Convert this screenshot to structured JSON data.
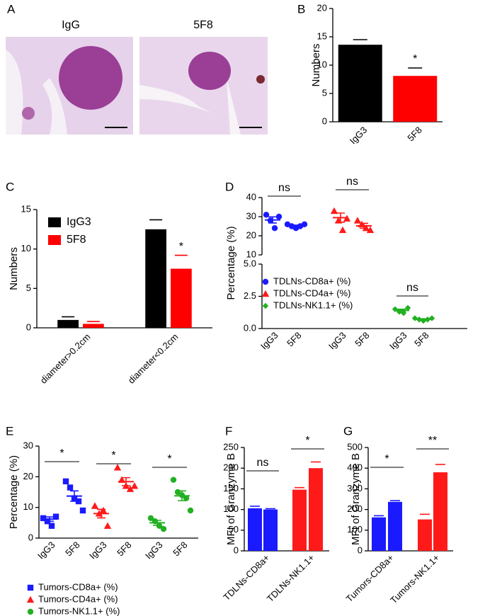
{
  "images": {
    "panel": "A",
    "titles": [
      "IgG",
      "5F8"
    ]
  },
  "chart_data": [
    {
      "type": "bar",
      "panel": "B",
      "y_label": "Numbers",
      "categories": [
        "IgG3",
        "5F8"
      ],
      "values": [
        13.6,
        8.1
      ],
      "errors": [
        0.9,
        1.4
      ],
      "colors": [
        "#000000",
        "#ff0000"
      ],
      "ylim": [
        0,
        20
      ],
      "yticks": [
        0,
        5,
        10,
        15,
        20
      ],
      "annotation": "*"
    },
    {
      "type": "grouped_bar",
      "panel": "C",
      "y_label": "Numbers",
      "categories": [
        "diameter>0.2cm",
        "diameter<0.2cm"
      ],
      "series": [
        {
          "name": "IgG3",
          "color": "#000000",
          "values": [
            1.0,
            12.5
          ],
          "errors": [
            0.4,
            1.2
          ]
        },
        {
          "name": "5F8",
          "color": "#ff0000",
          "values": [
            0.5,
            7.5
          ],
          "errors": [
            0.3,
            1.7
          ]
        }
      ],
      "ylim": [
        0,
        15
      ],
      "yticks": [
        0,
        5,
        10,
        15
      ],
      "annotation": "*"
    },
    {
      "type": "dot",
      "panel": "D",
      "y_label": "Percentage (%)",
      "ylim": [
        0,
        5
      ],
      "yticks": [
        {
          "value": 0,
          "label": "0.0"
        },
        {
          "value": 2.5,
          "label": "2.5"
        },
        {
          "value": 5,
          "label": "5.0"
        }
      ],
      "y2lim": [
        10,
        40
      ],
      "y2ticks": [
        10,
        20,
        30,
        40
      ],
      "series": [
        {
          "name": "TDLNs-CD8a+ (%)",
          "color": "#1a1aff",
          "marker": "circle",
          "axis": "y2",
          "categories": [
            "IgG3",
            "5F8"
          ],
          "values": [
            [
              31,
              28,
              24,
              30
            ],
            [
              26,
              25,
              24,
              25,
              26
            ]
          ],
          "means": [
            28.3,
            25.2
          ],
          "errors": [
            1.6,
            0.4
          ],
          "annotation": "ns"
        },
        {
          "name": "TDLNs-CD4a+ (%)",
          "color": "#ff1a1a",
          "marker": "triangle",
          "axis": "y2",
          "categories": [
            "IgG3",
            "5F8"
          ],
          "values": [
            [
              33,
              28,
              23,
              29
            ],
            [
              28,
              26,
              24,
              23
            ]
          ],
          "means": [
            29.5,
            25.2
          ],
          "errors": [
            2.4,
            1.3
          ],
          "annotation": "ns"
        },
        {
          "name": "TDLNs-NK1.1+ (%)",
          "color": "#22b022",
          "marker": "diamond",
          "categories": [
            "IgG3",
            "5F8"
          ],
          "values": [
            [
              1.5,
              1.3,
              1.2,
              1.6
            ],
            [
              0.8,
              0.7,
              0.6,
              0.7,
              0.8
            ]
          ],
          "means": [
            1.4,
            0.72
          ],
          "errors": [
            0.1,
            0.04
          ],
          "annotation": "ns"
        }
      ]
    },
    {
      "type": "dot",
      "panel": "E",
      "y_label": "Percentage (%)",
      "ylim": [
        0,
        30
      ],
      "yticks": [
        0,
        10,
        20,
        30
      ],
      "series": [
        {
          "name": "Tumors-CD8a+ (%)",
          "color": "#1a1aff",
          "marker": "square",
          "categories": [
            "IgG3",
            "5F8"
          ],
          "values": [
            [
              6.5,
              5.5,
              4,
              7
            ],
            [
              18.5,
              16.5,
              13,
              12,
              9
            ]
          ],
          "means": [
            6.2,
            13.7
          ],
          "errors": [
            0.7,
            1.7
          ],
          "annotation": "*"
        },
        {
          "name": "Tumors-CD4a+ (%)",
          "color": "#ff1a1a",
          "marker": "triangle",
          "categories": [
            "IgG3",
            "5F8"
          ],
          "values": [
            [
              10.5,
              8,
              9,
              4
            ],
            [
              23,
              19,
              17,
              16,
              17
            ]
          ],
          "means": [
            8,
            18.4
          ],
          "errors": [
            1.4,
            1.3
          ],
          "annotation": "*"
        },
        {
          "name": "Tumors-NK1.1+ (%)",
          "color": "#22b022",
          "marker": "circle",
          "categories": [
            "IgG3",
            "5F8"
          ],
          "values": [
            [
              6.5,
              5.5,
              4,
              3
            ],
            [
              19,
              15,
              14,
              13,
              9
            ]
          ],
          "means": [
            5,
            13.8
          ],
          "errors": [
            0.8,
            1.6
          ],
          "annotation": "*"
        }
      ]
    },
    {
      "type": "paired_bar",
      "panel": "F",
      "y_label": "MFI of Granzyme B",
      "categories": [
        "TDLNs-CD8a+",
        "TDLNs-NK1.1+"
      ],
      "values": [
        [
          103,
          100
        ],
        [
          148,
          200
        ]
      ],
      "errors": [
        [
          5,
          2
        ],
        [
          5,
          15
        ]
      ],
      "colors": [
        "#1a1aff",
        "#ff1a1a"
      ],
      "annotations": [
        "ns",
        "*"
      ],
      "ylim": [
        0,
        250
      ],
      "yticks": [
        0,
        50,
        100,
        150,
        200,
        250
      ]
    },
    {
      "type": "paired_bar",
      "panel": "G",
      "y_label": "MFI of Granzyme B",
      "categories": [
        "Tumors-CD8a+",
        "Tumors-NK1.1+"
      ],
      "values": [
        [
          162,
          237
        ],
        [
          152,
          380
        ]
      ],
      "errors": [
        [
          8,
          6
        ],
        [
          25,
          38
        ]
      ],
      "colors": [
        "#1a1aff",
        "#ff1a1a"
      ],
      "annotations": [
        "*",
        "**"
      ],
      "ylim": [
        0,
        500
      ],
      "yticks": [
        0,
        100,
        200,
        300,
        400,
        500
      ]
    }
  ]
}
